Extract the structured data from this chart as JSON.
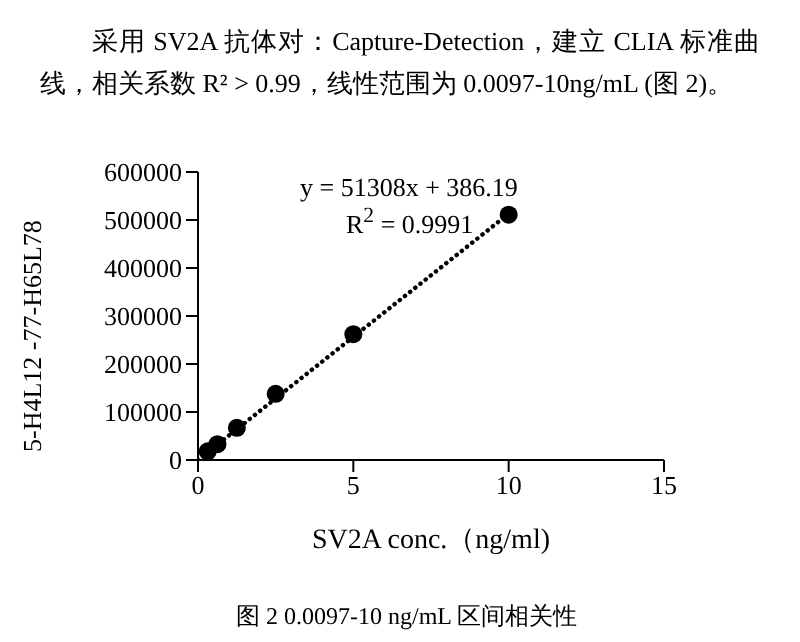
{
  "chart_data": {
    "type": "scatter",
    "title": "采用 SV2A 抗体对：Capture-Detection，建立 CLIA 标准曲线，相关系数 R² > 0.99，线性范围为 0.0097-10ng/mL (图 2)。",
    "xlabel": "SV2A conc.（ng/ml)",
    "ylabel": "5-H4L12 -77-H65L78",
    "annotations": [
      "y = 51308x + 386.19",
      "R$^{2}$ = 0.9991",
      "图 2 0.0097-10 ng/mL  区间相关性"
    ],
    "series": [
      {
        "color": "#000000",
        "marker": "circle",
        "x": [
          0.3125,
          0.625,
          1.25,
          2.5,
          5,
          10
        ],
        "values": [
          18000,
          33000,
          67000,
          138000,
          262000,
          511000
        ]
      },
      {
        "type": "line",
        "color": "#000000",
        "marker": "none",
        "line_style": "dotted",
        "x": [
          0,
          10
        ],
        "values": [
          0,
          513000
        ]
      }
    ],
    "xlim": [
      0,
      15
    ],
    "xticks": [
      0,
      5,
      10,
      15
    ],
    "ylim": [
      0,
      600000
    ],
    "yticks": [
      0,
      100000,
      200000,
      300000,
      400000,
      500000,
      600000
    ],
    "grid": false,
    "legend": false
  }
}
